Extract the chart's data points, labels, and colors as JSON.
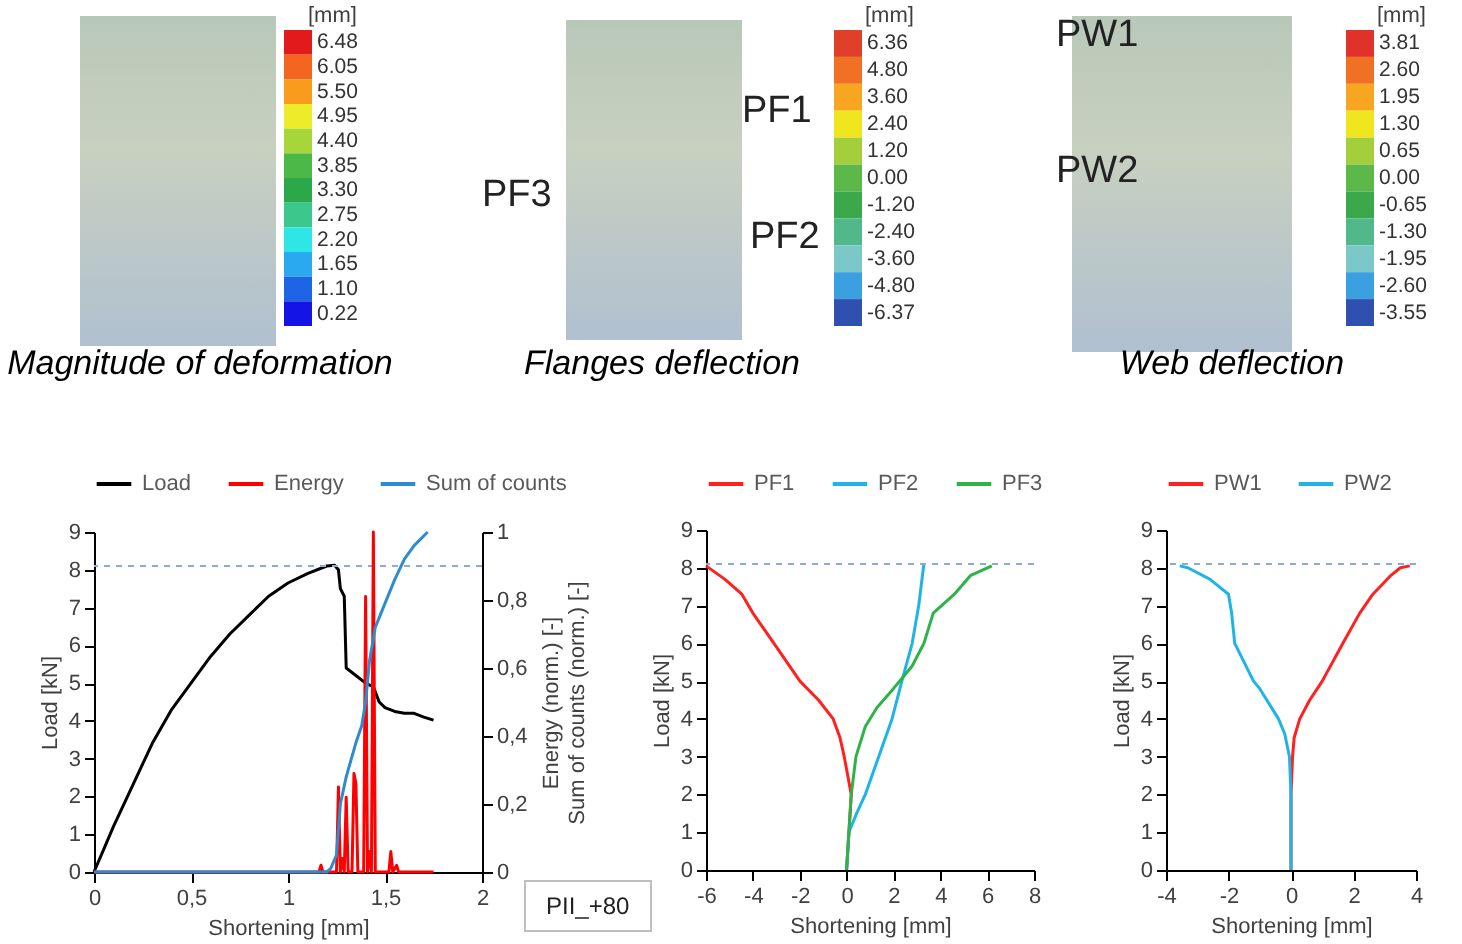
{
  "chart_data": [
    {
      "type": "other",
      "title": "Magnitude of deformation",
      "clabel": "[mm]",
      "categories": [
        "6.48",
        "6.05",
        "5.50",
        "4.95",
        "4.40",
        "3.85",
        "3.30",
        "2.75",
        "2.20",
        "1.65",
        "1.10",
        "0.22"
      ],
      "colors": [
        "#e31a1c",
        "#f4661f",
        "#f99b1c",
        "#ecec2a",
        "#a6d63a",
        "#4cb848",
        "#2aa84a",
        "#3cc88c",
        "#2ee6e6",
        "#2aa8f0",
        "#1e64e6",
        "#1414e6"
      ]
    },
    {
      "type": "other",
      "title": "Flanges deflection",
      "clabel": "[mm]",
      "categories": [
        "6.36",
        "4.80",
        "3.60",
        "2.40",
        "1.20",
        "0.00",
        "-1.20",
        "-2.40",
        "-3.60",
        "-4.80",
        "-6.37"
      ],
      "colors": [
        "#e0402a",
        "#f07024",
        "#f7a622",
        "#f0e620",
        "#a4ce3c",
        "#5cb848",
        "#3ca84c",
        "#50b88a",
        "#7cc8c8",
        "#3ca0e0",
        "#3050b0"
      ],
      "annotations": [
        "PF1",
        "PF2",
        "PF3"
      ]
    },
    {
      "type": "other",
      "title": "Web deflection",
      "clabel": "[mm]",
      "categories": [
        "3.81",
        "2.60",
        "1.95",
        "1.30",
        "0.65",
        "0.00",
        "-0.65",
        "-1.30",
        "-1.95",
        "-2.60",
        "-3.55"
      ],
      "colors": [
        "#e0322a",
        "#f07024",
        "#f7a622",
        "#f0e620",
        "#a4ce3c",
        "#5cb848",
        "#3ca84c",
        "#50b88a",
        "#7cc8c8",
        "#3ca0e0",
        "#3050b0"
      ],
      "annotations": [
        "PW1",
        "PW2"
      ]
    },
    {
      "type": "line",
      "xlabel": "Shortening [mm]",
      "ylabel": "Load [kN]",
      "y2label": "Energy (norm.) [-]\nSum of counts (norm.) [-]",
      "xlim": [
        0,
        2
      ],
      "xticks": [
        0,
        {
          "value": 0.5,
          "label": "0,5"
        },
        1,
        {
          "value": 1.5,
          "label": "1,5"
        },
        2
      ],
      "ylim": [
        0,
        9
      ],
      "yticks": [
        0,
        1,
        2,
        3,
        4,
        5,
        6,
        7,
        8,
        9
      ],
      "y2lim": [
        0,
        1
      ],
      "y2ticks": [
        0,
        {
          "value": 0.2,
          "label": "0,2"
        },
        {
          "value": 0.4,
          "label": "0,4"
        },
        {
          "value": 0.6,
          "label": "0,6"
        },
        {
          "value": 0.8,
          "label": "0,8"
        },
        1
      ],
      "legend": "top",
      "ref_lines": [
        {
          "axis": "y",
          "value": 8.1,
          "color": "#8eaadb",
          "line_style": "dashed"
        }
      ],
      "annotations": [
        "PII_+80"
      ],
      "series": [
        {
          "name": "Load",
          "color": "#000000",
          "x": [
            0,
            0.05,
            0.1,
            0.2,
            0.3,
            0.4,
            0.5,
            0.6,
            0.7,
            0.8,
            0.9,
            1.0,
            1.1,
            1.2,
            1.24,
            1.26,
            1.27,
            1.29,
            1.3,
            1.35,
            1.4,
            1.44,
            1.47,
            1.5,
            1.55,
            1.6,
            1.65,
            1.7,
            1.75
          ],
          "values": [
            0,
            0.6,
            1.2,
            2.3,
            3.4,
            4.3,
            5.0,
            5.7,
            6.3,
            6.8,
            7.3,
            7.65,
            7.9,
            8.1,
            8.12,
            8.0,
            7.5,
            7.3,
            5.4,
            5.2,
            5.0,
            4.9,
            4.5,
            4.35,
            4.25,
            4.2,
            4.2,
            4.1,
            4.02
          ]
        },
        {
          "name": "Energy",
          "color": "#ff0000",
          "axis": "y2",
          "x": [
            0,
            1.16,
            1.17,
            1.18,
            1.25,
            1.26,
            1.27,
            1.28,
            1.29,
            1.3,
            1.31,
            1.33,
            1.34,
            1.35,
            1.36,
            1.39,
            1.4,
            1.41,
            1.42,
            1.43,
            1.44,
            1.45,
            1.52,
            1.53,
            1.54,
            1.56,
            1.57,
            1.75
          ],
          "values": [
            0,
            0,
            0.02,
            0,
            0,
            0.25,
            0,
            0.04,
            0,
            0.22,
            0,
            0,
            0.29,
            0.26,
            0,
            0,
            0.81,
            0,
            0.06,
            0,
            1.0,
            0,
            0,
            0.06,
            0,
            0.02,
            0,
            0
          ]
        },
        {
          "name": "Sum of counts",
          "color": "#2e8bd0",
          "axis": "y2",
          "x": [
            0,
            1.2,
            1.22,
            1.25,
            1.27,
            1.3,
            1.35,
            1.38,
            1.4,
            1.42,
            1.45,
            1.5,
            1.55,
            1.6,
            1.65,
            1.72
          ],
          "values": [
            0,
            0,
            0.01,
            0.05,
            0.2,
            0.28,
            0.38,
            0.43,
            0.5,
            0.62,
            0.72,
            0.79,
            0.86,
            0.92,
            0.96,
            1.0
          ]
        }
      ]
    },
    {
      "type": "line",
      "xlabel": "Shortening [mm]",
      "ylabel": "Load [kN]",
      "xlim": [
        -6,
        8
      ],
      "xticks": [
        -6,
        -4,
        -2,
        0,
        2,
        4,
        6,
        8
      ],
      "ylim": [
        0,
        9
      ],
      "yticks": [
        0,
        1,
        2,
        3,
        4,
        5,
        6,
        7,
        8,
        9
      ],
      "legend": "top",
      "ref_lines": [
        {
          "axis": "y",
          "value": 8.1,
          "color": "#8eaadb",
          "line_style": "dashed"
        }
      ],
      "series": [
        {
          "name": "PF1",
          "color": "#ff2020",
          "x": [
            0,
            0.1,
            0.2,
            -0.1,
            -0.28,
            -0.57,
            -1.2,
            -1.99,
            -3.1,
            -4.0,
            -4.47,
            -5.2,
            -6.0
          ],
          "values": [
            0,
            1,
            2,
            3,
            3.5,
            4,
            4.5,
            5,
            6,
            6.8,
            7.3,
            7.7,
            8.05
          ]
        },
        {
          "name": "PF2",
          "color": "#1fb4e6",
          "x": [
            0,
            0.1,
            0.43,
            0.8,
            1.37,
            1.94,
            2.36,
            2.8,
            3.08,
            3.3
          ],
          "values": [
            0,
            1,
            1.5,
            2,
            3,
            4,
            5,
            6,
            7,
            8.1
          ]
        },
        {
          "name": "PF3",
          "color": "#2db34a",
          "x": [
            0,
            0.1,
            0.2,
            0.4,
            0.8,
            1.3,
            2,
            2.8,
            3.3,
            3.7,
            4.6,
            5.3,
            6.2
          ],
          "values": [
            0,
            1,
            2,
            3,
            3.8,
            4.3,
            4.8,
            5.4,
            6,
            6.8,
            7.3,
            7.8,
            8.05
          ]
        }
      ]
    },
    {
      "type": "line",
      "xlabel": "Shortening [mm]",
      "ylabel": "Load [kN]",
      "xlim": [
        -4,
        4
      ],
      "xticks": [
        -4,
        -2,
        0,
        2,
        4
      ],
      "ylim": [
        0,
        9
      ],
      "yticks": [
        0,
        1,
        2,
        3,
        4,
        5,
        6,
        7,
        8,
        9
      ],
      "legend": "top",
      "ref_lines": [
        {
          "axis": "y",
          "value": 8.1,
          "color": "#8eaadb",
          "line_style": "dashed"
        }
      ],
      "series": [
        {
          "name": "PW1",
          "color": "#ff2020",
          "x": [
            0,
            0,
            0.05,
            0.1,
            0.28,
            0.6,
            1.0,
            1.66,
            2.2,
            2.62,
            3.2,
            3.5,
            3.8
          ],
          "values": [
            0,
            2,
            3,
            3.5,
            4,
            4.5,
            5,
            6,
            6.8,
            7.3,
            7.8,
            8.0,
            8.05
          ]
        },
        {
          "name": "PW2",
          "color": "#1fb4e6",
          "x": [
            0,
            0,
            -0.05,
            -0.2,
            -0.4,
            -1,
            -1.2,
            -1.8,
            -1.9,
            -2.0,
            -2.6,
            -3.3,
            -3.56
          ],
          "values": [
            0,
            2,
            3,
            3.6,
            4,
            4.8,
            5,
            6,
            6.8,
            7.3,
            7.7,
            8.0,
            8.05
          ]
        }
      ]
    }
  ]
}
